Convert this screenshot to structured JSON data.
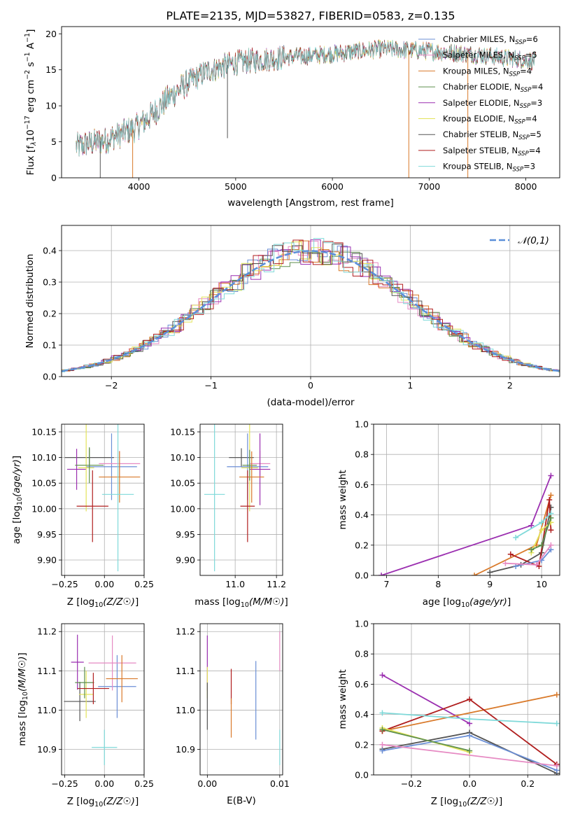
{
  "figure": {
    "title": "PLATE=2135, MJD=53827, FIBERID=0583, z=0.135"
  },
  "chart_data": [
    {
      "id": "spectrum",
      "type": "line",
      "title": "PLATE=2135, MJD=53827, FIBERID=0583, z=0.135",
      "xlabel": "wavelength [Angstrom, rest frame]",
      "ylabel_parts": [
        "Flux [f",
        "λ",
        "10",
        "−17",
        " erg cm",
        "−2",
        " s",
        "−1",
        " A",
        "−1",
        "]"
      ],
      "xlim": [
        3200,
        8350
      ],
      "ylim": [
        0,
        21
      ],
      "xticks": [
        4000,
        5000,
        6000,
        7000,
        8000
      ],
      "yticks": [
        0,
        5,
        10,
        15,
        20
      ],
      "grid": false,
      "legend": "top-right",
      "x_range": [
        3350,
        8100
      ],
      "continuum_anchor_x": [
        3350,
        3500,
        3650,
        3800,
        3950,
        4100,
        4300,
        4500,
        4700,
        5000,
        5200,
        5500,
        6000,
        6500,
        7000,
        7500,
        8100
      ],
      "continuum_anchor_y": [
        4.3,
        4.8,
        5.2,
        6.0,
        6.8,
        8.3,
        11.0,
        13.2,
        14.8,
        16.0,
        16.3,
        16.7,
        17.2,
        17.9,
        17.6,
        17.1,
        16.2
      ],
      "drops": [
        {
          "series": "Chabrier STELIB",
          "x": 3600,
          "y": 0
        },
        {
          "series": "Chabrier STELIB",
          "x": 4915,
          "y": 5.5
        },
        {
          "series": "Kroupa MILES",
          "x": 3935,
          "y": 0
        },
        {
          "series": "Kroupa MILES",
          "x": 6790,
          "y": 0
        },
        {
          "series": "Kroupa MILES",
          "x": 7400,
          "y": 0
        }
      ],
      "series": [
        {
          "name": "Chabrier MILES",
          "nssp": "6",
          "color": "#6b8fd6"
        },
        {
          "name": "Salpeter MILES",
          "nssp": "5",
          "color": "#e68ac3"
        },
        {
          "name": "Kroupa MILES",
          "nssp": "4",
          "color": "#d97a2b"
        },
        {
          "name": "Chabrier ELODIE",
          "nssp": "4",
          "color": "#5e8f4e"
        },
        {
          "name": "Salpeter ELODIE",
          "nssp": "3",
          "color": "#9b2fb0"
        },
        {
          "name": "Kroupa ELODIE",
          "nssp": "4",
          "color": "#e3e35a"
        },
        {
          "name": "Chabrier STELIB",
          "nssp": "5",
          "color": "#555555"
        },
        {
          "name": "Salpeter STELIB",
          "nssp": "4",
          "color": "#b01e1e"
        },
        {
          "name": "Kroupa STELIB",
          "nssp": "3",
          "color": "#7fd9d9"
        }
      ]
    },
    {
      "id": "residuals",
      "type": "histogram",
      "xlabel": "(data-model)/error",
      "ylabel": "Normed distribution",
      "xlim": [
        -2.5,
        2.5
      ],
      "ylim": [
        0,
        0.48
      ],
      "xticks": [
        -2,
        -1,
        0,
        1,
        2
      ],
      "yticks": [
        0.0,
        0.1,
        0.2,
        0.3,
        0.4
      ],
      "grid": true,
      "legend": "top-right",
      "reference_curve": {
        "name": "𝒩(0,1)",
        "mean": 0,
        "sigma": 1,
        "color": "#5b8fd9"
      },
      "bin_width": 0.1,
      "max_height": 0.46
    },
    {
      "id": "age_vs_Z",
      "type": "errorbar",
      "xlabel": "Z [log10(Z/Z☉)]",
      "ylabel": "age  [log10(age/yr)]",
      "xlim": [
        -0.27,
        0.25
      ],
      "ylim": [
        9.87,
        10.165
      ],
      "xticks": [
        -0.25,
        0.0,
        0.25
      ],
      "yticks": [
        9.9,
        9.95,
        10.0,
        10.05,
        10.1,
        10.15
      ],
      "grid": true,
      "points": [
        {
          "color": "#555555",
          "x": -0.095,
          "y": 10.1,
          "xerr": 0.155,
          "yerr": 0.018
        },
        {
          "color": "#6b8fd6",
          "x": 0.045,
          "y": 10.082,
          "xerr": 0.16,
          "yerr": 0.065
        },
        {
          "color": "#e68ac3",
          "x": 0.095,
          "y": 10.088,
          "xerr": 0.13,
          "yerr": 0.025
        },
        {
          "color": "#9b2fb0",
          "x": -0.175,
          "y": 10.077,
          "xerr": 0.06,
          "yerr": 0.04
        },
        {
          "color": "#e3e35a",
          "x": -0.115,
          "y": 10.08,
          "xerr": 0.05,
          "yerr": 0.085
        },
        {
          "color": "#5e8f4e",
          "x": -0.095,
          "y": 10.085,
          "xerr": 0.09,
          "yerr": 0.035
        },
        {
          "color": "#d97a2b",
          "x": 0.095,
          "y": 10.062,
          "xerr": 0.13,
          "yerr": 0.05
        },
        {
          "color": "#b01e1e",
          "x": -0.075,
          "y": 10.005,
          "xerr": 0.1,
          "yerr": 0.07
        },
        {
          "color": "#7fd9d9",
          "x": 0.085,
          "y": 10.028,
          "xerr": 0.1,
          "yerr": 0.15
        }
      ]
    },
    {
      "id": "age_vs_mass",
      "type": "errorbar",
      "xlabel": "mass [log10(M/M☉)]",
      "ylabel": "",
      "xlim": [
        10.83,
        11.23
      ],
      "ylim": [
        9.87,
        10.165
      ],
      "xticks": [
        11.0,
        11.2
      ],
      "yticks": [
        9.9,
        9.95,
        10.0,
        10.05,
        10.1,
        10.15
      ],
      "grid": true,
      "points": [
        {
          "color": "#555555",
          "x": 11.03,
          "y": 10.1,
          "xerr": 0.06,
          "yerr": 0.018
        },
        {
          "color": "#6b8fd6",
          "x": 11.06,
          "y": 10.082,
          "xerr": 0.1,
          "yerr": 0.065
        },
        {
          "color": "#e68ac3",
          "x": 11.12,
          "y": 10.088,
          "xerr": 0.05,
          "yerr": 0.025
        },
        {
          "color": "#9b2fb0",
          "x": 11.12,
          "y": 10.077,
          "xerr": 0.05,
          "yerr": 0.07
        },
        {
          "color": "#e3e35a",
          "x": 11.07,
          "y": 10.08,
          "xerr": 0.04,
          "yerr": 0.085
        },
        {
          "color": "#5e8f4e",
          "x": 11.07,
          "y": 10.085,
          "xerr": 0.035,
          "yerr": 0.03
        },
        {
          "color": "#d97a2b",
          "x": 11.08,
          "y": 10.062,
          "xerr": 0.06,
          "yerr": 0.05
        },
        {
          "color": "#b01e1e",
          "x": 11.06,
          "y": 10.005,
          "xerr": 0.035,
          "yerr": 0.07
        },
        {
          "color": "#7fd9d9",
          "x": 10.9,
          "y": 10.028,
          "xerr": 0.05,
          "yerr": 0.15
        }
      ]
    },
    {
      "id": "massweight_vs_age",
      "type": "line",
      "xlabel": "age  [log10(age/yr)]",
      "ylabel": "mass weight",
      "xlim": [
        6.75,
        10.35
      ],
      "ylim": [
        0,
        1
      ],
      "xticks": [
        7,
        8,
        9,
        10
      ],
      "yticks": [
        0.0,
        0.2,
        0.4,
        0.6,
        0.8,
        1.0
      ],
      "grid": true,
      "series": [
        {
          "color": "#9b2fb0",
          "x": [
            6.9,
            9.8,
            10.18
          ],
          "y": [
            0.0,
            0.33,
            0.66
          ]
        },
        {
          "color": "#d97a2b",
          "x": [
            8.7,
            9.9,
            10.18
          ],
          "y": [
            0.0,
            0.2,
            0.53
          ]
        },
        {
          "color": "#555555",
          "x": [
            9.0,
            9.6,
            10.0,
            10.18
          ],
          "y": [
            0.02,
            0.07,
            0.15,
            0.45
          ]
        },
        {
          "color": "#b01e1e",
          "x": [
            9.4,
            9.95,
            10.15,
            10.18
          ],
          "y": [
            0.14,
            0.06,
            0.5,
            0.3
          ]
        },
        {
          "color": "#7fd9d9",
          "x": [
            9.5,
            10.0,
            10.18
          ],
          "y": [
            0.25,
            0.35,
            0.41
          ]
        },
        {
          "color": "#6b8fd6",
          "x": [
            9.5,
            10.0,
            10.18
          ],
          "y": [
            0.06,
            0.1,
            0.17
          ]
        },
        {
          "color": "#e68ac3",
          "x": [
            9.3,
            9.9,
            10.18
          ],
          "y": [
            0.08,
            0.07,
            0.2
          ]
        },
        {
          "color": "#e3e35a",
          "x": [
            9.8,
            10.0,
            10.18
          ],
          "y": [
            0.15,
            0.3,
            0.35
          ]
        },
        {
          "color": "#5e8f4e",
          "x": [
            9.8,
            10.0,
            10.18
          ],
          "y": [
            0.17,
            0.2,
            0.38
          ]
        }
      ]
    },
    {
      "id": "mass_vs_Z",
      "type": "errorbar",
      "xlabel": "Z [log10(Z/Z☉)]",
      "ylabel": "mass [log10(M/M☉)]",
      "xlim": [
        -0.27,
        0.25
      ],
      "ylim": [
        10.835,
        11.22
      ],
      "xticks": [
        -0.25,
        0.0,
        0.25
      ],
      "yticks": [
        10.9,
        11.0,
        11.1,
        11.2
      ],
      "grid": true,
      "points": [
        {
          "color": "#555555",
          "x": -0.155,
          "y": 11.022,
          "xerr": 0.1,
          "yerr": 0.05
        },
        {
          "color": "#6b8fd6",
          "x": 0.08,
          "y": 11.06,
          "xerr": 0.12,
          "yerr": 0.08
        },
        {
          "color": "#e68ac3",
          "x": 0.05,
          "y": 11.12,
          "xerr": 0.15,
          "yerr": 0.07
        },
        {
          "color": "#9b2fb0",
          "x": -0.17,
          "y": 11.122,
          "xerr": 0.04,
          "yerr": 0.07
        },
        {
          "color": "#e3e35a",
          "x": -0.115,
          "y": 11.04,
          "xerr": 0.045,
          "yerr": 0.06
        },
        {
          "color": "#5e8f4e",
          "x": -0.125,
          "y": 11.07,
          "xerr": 0.06,
          "yerr": 0.04
        },
        {
          "color": "#d97a2b",
          "x": 0.11,
          "y": 11.08,
          "xerr": 0.1,
          "yerr": 0.06
        },
        {
          "color": "#b01e1e",
          "x": -0.07,
          "y": 11.055,
          "xerr": 0.1,
          "yerr": 0.04
        },
        {
          "color": "#7fd9d9",
          "x": 0.0,
          "y": 10.905,
          "xerr": 0.08,
          "yerr": 0.045
        }
      ]
    },
    {
      "id": "mass_vs_EBV",
      "type": "errorbar",
      "xlabel": "E(B-V)",
      "ylabel": "",
      "xlim": [
        -0.001,
        0.0104
      ],
      "ylim": [
        10.835,
        11.22
      ],
      "xticks": [
        0.0,
        0.01
      ],
      "yticks": [
        10.9,
        11.0,
        11.1,
        11.2
      ],
      "grid": true,
      "points": [
        {
          "color": "#9b2fb0",
          "x": 0.0,
          "y": 11.12,
          "xerr": 0,
          "yerr": 0.07
        },
        {
          "color": "#e3e35a",
          "x": 0.0,
          "y": 11.07,
          "xerr": 0,
          "yerr": 0.04
        },
        {
          "color": "#555555",
          "x": 0.0,
          "y": 11.01,
          "xerr": 0,
          "yerr": 0.06
        },
        {
          "color": "#b01e1e",
          "x": 0.0033,
          "y": 11.06,
          "xerr": 0,
          "yerr": 0.045
        },
        {
          "color": "#d97a2b",
          "x": 0.0033,
          "y": 10.98,
          "xerr": 0,
          "yerr": 0.05
        },
        {
          "color": "#6b8fd6",
          "x": 0.0067,
          "y": 11.025,
          "xerr": 0,
          "yerr": 0.1
        },
        {
          "color": "#e68ac3",
          "x": 0.01,
          "y": 11.15,
          "xerr": 0,
          "yerr": 0.05
        },
        {
          "color": "#7fd9d9",
          "x": 0.01,
          "y": 10.905,
          "xerr": 0,
          "yerr": 0.045
        }
      ]
    },
    {
      "id": "massweight_vs_Z",
      "type": "line",
      "xlabel": "Z [log10(Z/Z☉)]",
      "ylabel": "mass weight",
      "xlim": [
        -0.33,
        0.31
      ],
      "ylim": [
        0,
        1
      ],
      "xticks": [
        -0.2,
        0.0,
        0.2
      ],
      "yticks": [
        0.0,
        0.2,
        0.4,
        0.6,
        0.8,
        1.0
      ],
      "grid": true,
      "series": [
        {
          "color": "#9b2fb0",
          "x": [
            -0.3,
            0.0
          ],
          "y": [
            0.66,
            0.34
          ]
        },
        {
          "color": "#d97a2b",
          "x": [
            -0.3,
            0.3
          ],
          "y": [
            0.29,
            0.53
          ]
        },
        {
          "color": "#b01e1e",
          "x": [
            -0.3,
            0.0,
            0.3
          ],
          "y": [
            0.29,
            0.5,
            0.07
          ]
        },
        {
          "color": "#7fd9d9",
          "x": [
            -0.3,
            0.0,
            0.3
          ],
          "y": [
            0.41,
            0.37,
            0.34
          ]
        },
        {
          "color": "#555555",
          "x": [
            -0.3,
            0.0,
            0.3
          ],
          "y": [
            0.17,
            0.28,
            0.01
          ]
        },
        {
          "color": "#6b8fd6",
          "x": [
            -0.3,
            0.0,
            0.3
          ],
          "y": [
            0.16,
            0.26,
            0.03
          ]
        },
        {
          "color": "#e68ac3",
          "x": [
            -0.3,
            0.3
          ],
          "y": [
            0.2,
            0.06
          ]
        },
        {
          "color": "#e3e35a",
          "x": [
            -0.3,
            0.0
          ],
          "y": [
            0.31,
            0.15
          ]
        },
        {
          "color": "#5e8f4e",
          "x": [
            -0.3,
            0.0
          ],
          "y": [
            0.3,
            0.16
          ]
        }
      ]
    }
  ]
}
